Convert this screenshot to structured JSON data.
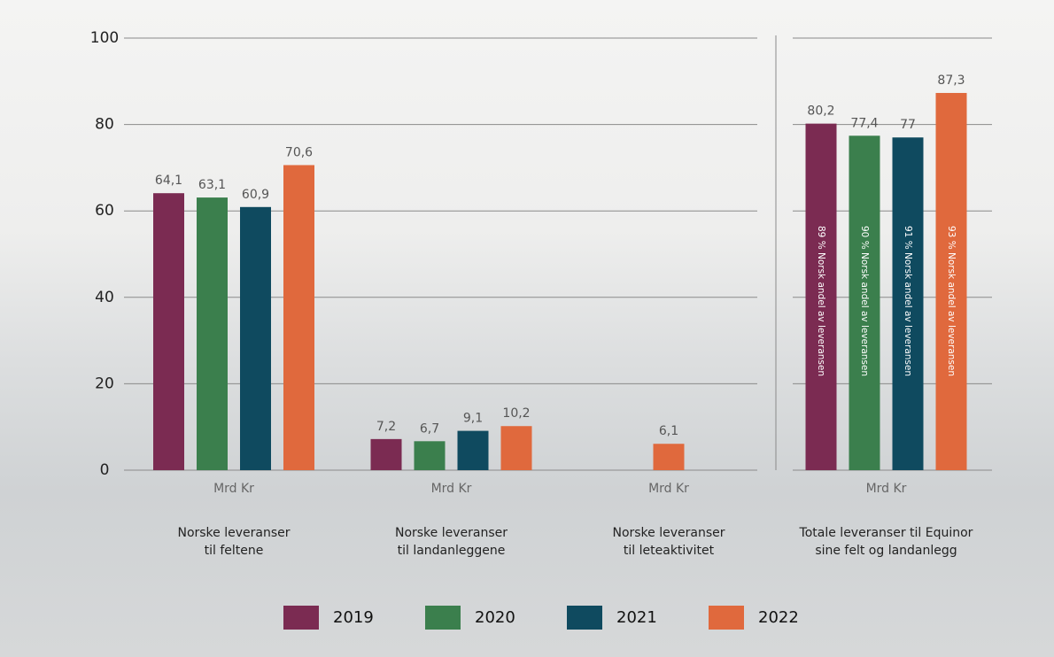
{
  "chart_data": {
    "type": "bar",
    "categories": [
      "Norske leveranser\ntil feltene",
      "Norske leveranser\ntil landanleggene",
      "Norske leveranser\ntil leteaktivitet",
      "Totale leveranser til Equinor\nsine felt og landanlegg"
    ],
    "unit_labels": [
      "Mrd Kr",
      "Mrd Kr",
      "Mrd Kr",
      "Mrd Kr"
    ],
    "series": [
      {
        "name": "2019",
        "color": "#7b2b52",
        "values": [
          64.1,
          7.2,
          null,
          80.2
        ],
        "value_labels": [
          "64,1",
          "7,2",
          null,
          "80,2"
        ],
        "inner_labels": [
          null,
          null,
          null,
          "89 % Norsk andel av leveransen"
        ]
      },
      {
        "name": "2020",
        "color": "#3b7f4d",
        "values": [
          63.1,
          6.7,
          null,
          77.4
        ],
        "value_labels": [
          "63,1",
          "6,7",
          null,
          "77,4"
        ],
        "inner_labels": [
          null,
          null,
          null,
          "90 % Norsk andel av leveransen"
        ]
      },
      {
        "name": "2021",
        "color": "#0f4a5f",
        "values": [
          60.9,
          9.1,
          null,
          77
        ],
        "value_labels": [
          "60,9",
          "9,1",
          null,
          "77"
        ],
        "inner_labels": [
          null,
          null,
          null,
          "91 % Norsk andel av leveransen"
        ]
      },
      {
        "name": "2022",
        "color": "#e0693d",
        "values": [
          70.6,
          10.2,
          6.1,
          87.3
        ],
        "value_labels": [
          "70,6",
          "10,2",
          "6,1",
          "87,3"
        ],
        "inner_labels": [
          null,
          null,
          null,
          "93 % Norsk andel av leveransen"
        ]
      }
    ],
    "ylim": [
      0,
      100
    ],
    "yticks": [
      0,
      20,
      40,
      60,
      80,
      100
    ],
    "grid": true
  }
}
